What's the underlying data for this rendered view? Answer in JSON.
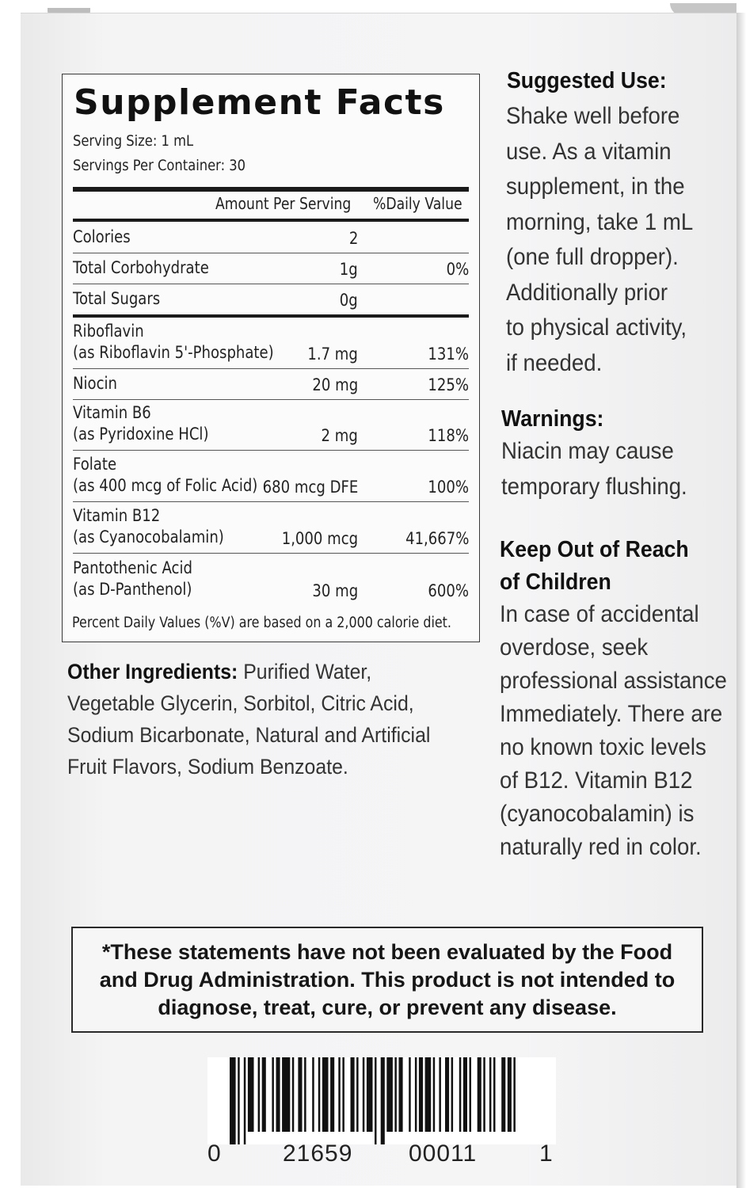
{
  "facts": {
    "title": "Supplement Facts",
    "serving_size": "Serving Size: 1 mL",
    "servings_per_container": "Servings Per Container: 30",
    "col_amount": "Amount Per Serving",
    "col_dv": "%Daily Value",
    "rows": [
      {
        "line1": "Colories",
        "line2": "",
        "amount": "2",
        "dv": ""
      },
      {
        "line1": "Total Corbohydrate",
        "line2": "",
        "amount": "1g",
        "dv": "0%"
      },
      {
        "line1": "Total Sugars",
        "line2": "",
        "amount": "0g",
        "dv": ""
      },
      {
        "line1": "Riboflavin",
        "line2": "(as Riboflavin 5'-Phosphate)",
        "amount": "1.7 mg",
        "dv": "131%"
      },
      {
        "line1": "Niocin",
        "line2": "",
        "amount": "20 mg",
        "dv": "125%"
      },
      {
        "line1": "Vitamin B6",
        "line2": "(as Pyridoxine HCl)",
        "amount": "2 mg",
        "dv": "118%"
      },
      {
        "line1": "Folate",
        "line2": "(as 400 mcg of Folic Acid)",
        "amount": "680 mcg DFE",
        "dv": "100%"
      },
      {
        "line1": "Vitamin B12",
        "line2": "(as Cyanocobalamin)",
        "amount": "1,000 mcg",
        "dv": "41,667%"
      },
      {
        "line1": "Pantothenic Acid",
        "line2": "(as D-Panthenol)",
        "amount": "30 mg",
        "dv": "600%"
      }
    ],
    "footnote": "Percent Daily Values (%V) are based on a 2,000 calorie diet."
  },
  "other_ingredients": {
    "label": "Other Ingredients:",
    "lines": [
      " Purified Water,",
      "Vegetable Glycerin, Sorbitol, Citric Acid,",
      "Sodium Bicarbonate, Natural and Artificial",
      "Fruit Flavors, Sodium Benzoate."
    ]
  },
  "suggested_use": {
    "heading": "Suggested Use:",
    "lines": [
      "Shake well before",
      "use. As a vitamin",
      "supplement, in the",
      "morning, take 1 mL",
      "(one full dropper).",
      "Additionally prior",
      "to physical activity,",
      "if needed."
    ]
  },
  "warnings": {
    "heading": "Warnings:",
    "lines": [
      "Niacin may cause",
      "temporary flushing."
    ]
  },
  "keep_out": {
    "heading_lines": [
      "Keep Out of Reach",
      "of Children"
    ],
    "lines": [
      "In case of accidental",
      "overdose, seek",
      "professional assistance",
      "Immediately. There are",
      "no known toxic levels",
      "of B12. Vitamin B12",
      "(cyanocobalamin) is",
      "naturally red in color."
    ]
  },
  "disclaimer": {
    "lines": [
      "*These statements have not been evaluated by the Food",
      "and Drug Administration. This product is not intended to",
      "diagnose, treat, cure, or prevent any disease."
    ]
  },
  "barcode": {
    "digits": [
      "0",
      "21659",
      "00011",
      "1"
    ]
  }
}
